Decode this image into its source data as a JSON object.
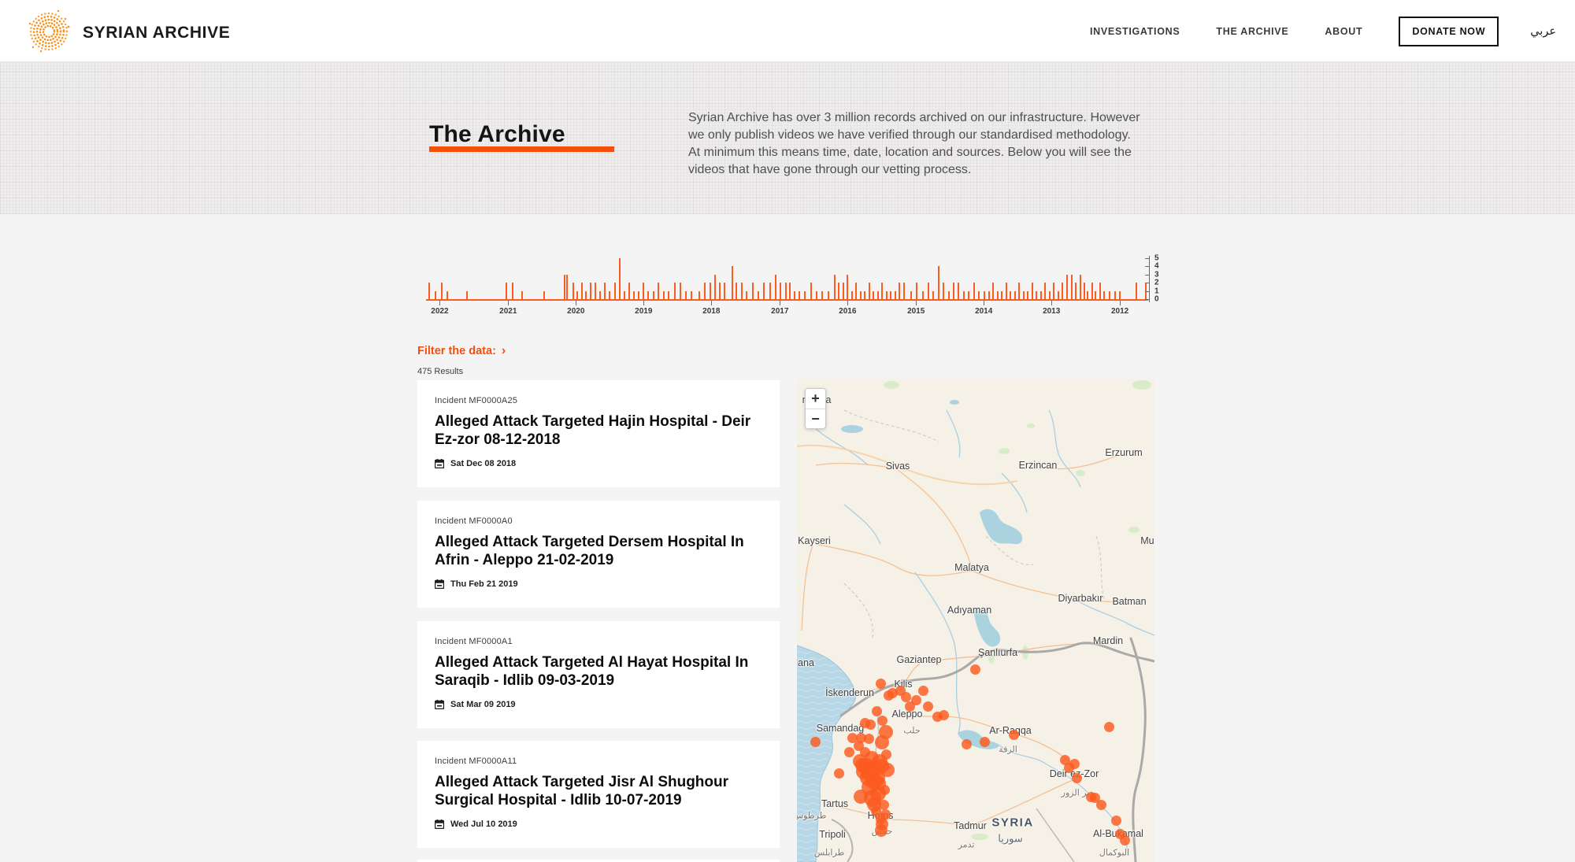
{
  "colors": {
    "accent": "#f4500b",
    "bar": "#f95d1f",
    "dot": "#fb5a1f",
    "logo_orange": "#f6921e",
    "water": "#aad3df",
    "land": "#f6f1e6"
  },
  "header": {
    "brand": "SYRIAN ARCHIVE",
    "nav": [
      {
        "label": "INVESTIGATIONS"
      },
      {
        "label": "THE ARCHIVE"
      },
      {
        "label": "ABOUT"
      }
    ],
    "donate_label": "DONATE NOW",
    "lang_label": "عربي"
  },
  "hero": {
    "title": "The Archive",
    "description": "Syrian Archive has over 3 million records archived on our infrastructure. However we only publish videos we have verified through our standardised methodology. At minimum this means time, date, location and sources. Below you will see the videos that have gone through our vetting process."
  },
  "filter": {
    "label": "Filter the data:",
    "chevron": "›"
  },
  "results": {
    "count_label": "475 Results"
  },
  "cards": [
    {
      "incident": "Incident MF0000A25",
      "title": "Alleged Attack Targeted Hajin Hospital - Deir Ez-zor 08-12-2018",
      "date": "Sat Dec 08 2018"
    },
    {
      "incident": "Incident MF0000A0",
      "title": "Alleged Attack Targeted Dersem Hospital In Afrin - Aleppo 21-02-2019",
      "date": "Thu Feb 21 2019"
    },
    {
      "incident": "Incident MF0000A1",
      "title": "Alleged Attack Targeted Al Hayat Hospital In Saraqib - Idlib 09-03-2019",
      "date": "Sat Mar 09 2019"
    },
    {
      "incident": "Incident MF0000A11",
      "title": "Alleged Attack Targeted Jisr Al Shughour Surgical Hospital - Idlib 10-07-2019",
      "date": "Wed Jul 10 2019"
    }
  ],
  "chart_data": {
    "type": "bar",
    "ylim": [
      0,
      5
    ],
    "y_ticks": [
      0,
      1,
      2,
      3,
      4,
      5
    ],
    "x_ticks": [
      {
        "label": "2022",
        "pos": 0.019
      },
      {
        "label": "2021",
        "pos": 0.114
      },
      {
        "label": "2020",
        "pos": 0.208
      },
      {
        "label": "2019",
        "pos": 0.302
      },
      {
        "label": "2018",
        "pos": 0.396
      },
      {
        "label": "2017",
        "pos": 0.491
      },
      {
        "label": "2016",
        "pos": 0.585
      },
      {
        "label": "2015",
        "pos": 0.68
      },
      {
        "label": "2014",
        "pos": 0.774
      },
      {
        "label": "2013",
        "pos": 0.868
      },
      {
        "label": "2012",
        "pos": 0.963
      }
    ],
    "bars": [
      [
        0.003,
        2
      ],
      [
        0.012,
        1
      ],
      [
        0.021,
        2
      ],
      [
        0.028,
        1
      ],
      [
        0.056,
        1
      ],
      [
        0.11,
        2
      ],
      [
        0.119,
        2
      ],
      [
        0.132,
        1
      ],
      [
        0.163,
        1
      ],
      [
        0.191,
        3
      ],
      [
        0.195,
        3
      ],
      [
        0.203,
        2
      ],
      [
        0.209,
        1
      ],
      [
        0.215,
        2
      ],
      [
        0.221,
        1
      ],
      [
        0.227,
        2
      ],
      [
        0.234,
        2
      ],
      [
        0.24,
        1
      ],
      [
        0.247,
        2
      ],
      [
        0.254,
        1
      ],
      [
        0.261,
        2
      ],
      [
        0.268,
        5
      ],
      [
        0.274,
        1
      ],
      [
        0.281,
        2
      ],
      [
        0.287,
        1
      ],
      [
        0.294,
        1
      ],
      [
        0.3,
        2
      ],
      [
        0.307,
        1
      ],
      [
        0.315,
        1
      ],
      [
        0.321,
        2
      ],
      [
        0.329,
        1
      ],
      [
        0.336,
        1
      ],
      [
        0.344,
        2
      ],
      [
        0.352,
        2
      ],
      [
        0.359,
        1
      ],
      [
        0.367,
        1
      ],
      [
        0.378,
        1
      ],
      [
        0.386,
        2
      ],
      [
        0.393,
        2
      ],
      [
        0.4,
        3
      ],
      [
        0.406,
        2
      ],
      [
        0.413,
        2
      ],
      [
        0.424,
        4
      ],
      [
        0.43,
        2
      ],
      [
        0.437,
        2
      ],
      [
        0.444,
        1
      ],
      [
        0.452,
        2
      ],
      [
        0.46,
        1
      ],
      [
        0.468,
        2
      ],
      [
        0.476,
        2
      ],
      [
        0.484,
        3
      ],
      [
        0.491,
        2
      ],
      [
        0.498,
        2
      ],
      [
        0.504,
        2
      ],
      [
        0.51,
        1
      ],
      [
        0.517,
        1
      ],
      [
        0.525,
        1
      ],
      [
        0.533,
        2
      ],
      [
        0.541,
        1
      ],
      [
        0.549,
        1
      ],
      [
        0.557,
        1
      ],
      [
        0.566,
        3
      ],
      [
        0.572,
        2
      ],
      [
        0.578,
        2
      ],
      [
        0.584,
        3
      ],
      [
        0.59,
        1
      ],
      [
        0.596,
        2
      ],
      [
        0.602,
        1
      ],
      [
        0.608,
        1
      ],
      [
        0.614,
        2
      ],
      [
        0.62,
        1
      ],
      [
        0.626,
        1
      ],
      [
        0.632,
        2
      ],
      [
        0.638,
        1
      ],
      [
        0.644,
        1
      ],
      [
        0.65,
        1
      ],
      [
        0.656,
        2
      ],
      [
        0.662,
        2
      ],
      [
        0.672,
        1
      ],
      [
        0.68,
        2
      ],
      [
        0.688,
        1
      ],
      [
        0.696,
        2
      ],
      [
        0.703,
        1
      ],
      [
        0.71,
        4
      ],
      [
        0.717,
        2
      ],
      [
        0.724,
        1
      ],
      [
        0.731,
        2
      ],
      [
        0.738,
        2
      ],
      [
        0.745,
        1
      ],
      [
        0.752,
        1
      ],
      [
        0.759,
        2
      ],
      [
        0.766,
        1
      ],
      [
        0.774,
        1
      ],
      [
        0.78,
        1
      ],
      [
        0.786,
        2
      ],
      [
        0.792,
        1
      ],
      [
        0.798,
        1
      ],
      [
        0.804,
        2
      ],
      [
        0.81,
        1
      ],
      [
        0.816,
        1
      ],
      [
        0.822,
        2
      ],
      [
        0.828,
        1
      ],
      [
        0.834,
        1
      ],
      [
        0.84,
        2
      ],
      [
        0.846,
        1
      ],
      [
        0.852,
        1
      ],
      [
        0.858,
        2
      ],
      [
        0.864,
        1
      ],
      [
        0.87,
        2
      ],
      [
        0.876,
        1
      ],
      [
        0.882,
        2
      ],
      [
        0.889,
        3
      ],
      [
        0.895,
        3
      ],
      [
        0.901,
        2
      ],
      [
        0.907,
        3
      ],
      [
        0.912,
        2
      ],
      [
        0.917,
        1
      ],
      [
        0.923,
        2
      ],
      [
        0.928,
        1
      ],
      [
        0.934,
        2
      ],
      [
        0.94,
        1
      ],
      [
        0.947,
        1
      ],
      [
        0.955,
        1
      ],
      [
        0.962,
        1
      ],
      [
        0.985,
        2
      ],
      [
        0.998,
        2
      ]
    ]
  },
  "map": {
    "zoom_in": "+",
    "zoom_out": "−",
    "labels": [
      [
        "masya",
        25,
        27,
        "city"
      ],
      [
        "Sivas",
        128,
        111,
        "city"
      ],
      [
        "Erzincan",
        306,
        110,
        "city"
      ],
      [
        "Erzurum",
        415,
        94,
        "city"
      ],
      [
        "Kayseri",
        22,
        206,
        "city"
      ],
      [
        "Malatya",
        222,
        240,
        "city"
      ],
      [
        "Muş",
        448,
        206,
        "city"
      ],
      [
        "Diyarbakır",
        360,
        279,
        "city"
      ],
      [
        "Batman",
        422,
        283,
        "city"
      ],
      [
        "Adıyaman",
        219,
        294,
        "city"
      ],
      [
        "Gaziantep",
        155,
        357,
        "city"
      ],
      [
        "Şanlıurfa",
        255,
        348,
        "city"
      ],
      [
        "Mardin",
        395,
        333,
        "city"
      ],
      [
        "Kilis",
        135,
        388,
        "city"
      ],
      [
        "İskenderun",
        67,
        399,
        "city"
      ],
      [
        "dana",
        8,
        361,
        "city"
      ],
      [
        "Samandağ",
        55,
        444,
        "city"
      ],
      [
        "Aleppo",
        140,
        426,
        "city"
      ],
      [
        "حلب",
        146,
        447,
        "ar"
      ],
      [
        "Ar-Raqqa",
        271,
        447,
        "city"
      ],
      [
        "الرقة",
        268,
        471,
        "ar"
      ],
      [
        "Tartus",
        48,
        540,
        "city"
      ],
      [
        "طرطوس",
        16,
        555,
        "ar"
      ],
      [
        "Tripoli",
        45,
        579,
        "city"
      ],
      [
        "طرابلس",
        41,
        602,
        "ar"
      ],
      [
        "Homs",
        106,
        555,
        "city"
      ],
      [
        "حمص",
        108,
        575,
        "ar"
      ],
      [
        "Tadmur",
        220,
        568,
        "city"
      ],
      [
        "تدمر",
        215,
        592,
        "ar"
      ],
      [
        "SYRIA",
        274,
        564,
        "country"
      ],
      [
        "سوريا",
        271,
        585,
        "country-ar"
      ],
      [
        "Deir ez-Zor",
        352,
        502,
        "city"
      ],
      [
        "دير الزور",
        356,
        526,
        "ar"
      ],
      [
        "Al-Bukamal",
        408,
        578,
        "city"
      ],
      [
        "البوكمال",
        403,
        602,
        "ar"
      ]
    ],
    "dots": [
      [
        106,
        387
      ],
      [
        121,
        399
      ],
      [
        116,
        402
      ],
      [
        131,
        396
      ],
      [
        138,
        404
      ],
      [
        160,
        396
      ],
      [
        166,
        416
      ],
      [
        178,
        429
      ],
      [
        186,
        427
      ],
      [
        151,
        408
      ],
      [
        143,
        416
      ],
      [
        226,
        369
      ],
      [
        275,
        452
      ],
      [
        238,
        461
      ],
      [
        215,
        464
      ],
      [
        396,
        442
      ],
      [
        101,
        422
      ],
      [
        108,
        434
      ],
      [
        113,
        449,
        9
      ],
      [
        108,
        462,
        9
      ],
      [
        113,
        477
      ],
      [
        105,
        487,
        10
      ],
      [
        95,
        482,
        9
      ],
      [
        88,
        492,
        10
      ],
      [
        98,
        496,
        11
      ],
      [
        108,
        492,
        9
      ],
      [
        93,
        501,
        11
      ],
      [
        83,
        491,
        9
      ],
      [
        85,
        499,
        10
      ],
      [
        115,
        497,
        9
      ],
      [
        101,
        507,
        11
      ],
      [
        98,
        512,
        10
      ],
      [
        86,
        437
      ],
      [
        93,
        439
      ],
      [
        81,
        456
      ],
      [
        91,
        457
      ],
      [
        78,
        466
      ],
      [
        86,
        474
      ],
      [
        70,
        456
      ],
      [
        66,
        474
      ],
      [
        80,
        486,
        9
      ],
      [
        53,
        501
      ],
      [
        23,
        461
      ],
      [
        81,
        531,
        9
      ],
      [
        98,
        541,
        9
      ],
      [
        110,
        541
      ],
      [
        111,
        522
      ],
      [
        92,
        519,
        10
      ],
      [
        103,
        527,
        10
      ],
      [
        96,
        533,
        11
      ],
      [
        104,
        514,
        9
      ],
      [
        90,
        507,
        10
      ],
      [
        106,
        559
      ],
      [
        108,
        566,
        8
      ],
      [
        100,
        549
      ],
      [
        112,
        553
      ],
      [
        107,
        574,
        8
      ],
      [
        340,
        484
      ],
      [
        345,
        494
      ],
      [
        352,
        489
      ],
      [
        355,
        507
      ],
      [
        373,
        531
      ],
      [
        378,
        532
      ],
      [
        386,
        541
      ],
      [
        405,
        561
      ],
      [
        410,
        578
      ],
      [
        416,
        586
      ]
    ]
  }
}
